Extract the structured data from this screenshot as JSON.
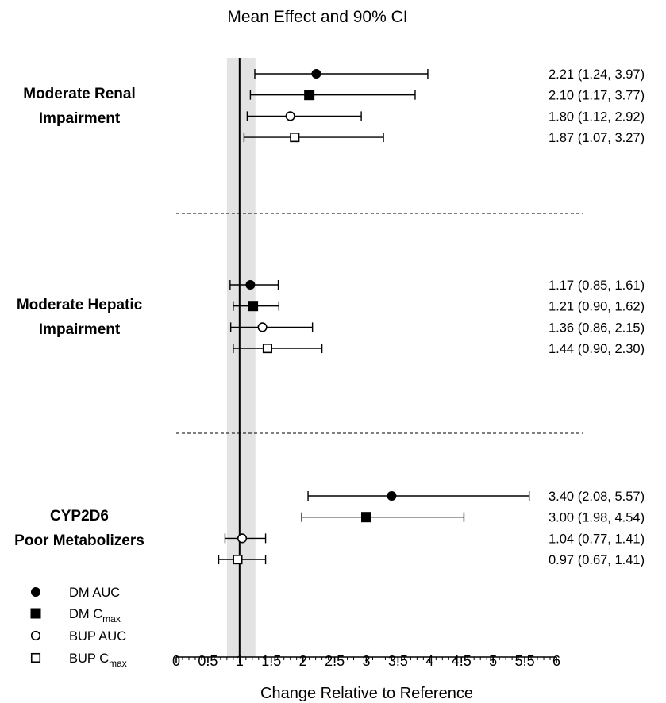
{
  "chart_data": {
    "type": "forest",
    "title": "Mean Effect and 90% CI",
    "xlabel": "Change Relative to Reference",
    "xlim": [
      0,
      6
    ],
    "xticks": [
      "0",
      "0.5",
      "1",
      "1.5",
      "2",
      "2.5",
      "3",
      "3.5",
      "4",
      "4.5",
      "5",
      "5.5",
      "6"
    ],
    "reference_line": 1,
    "reference_band": [
      0.8,
      1.25
    ],
    "legend": [
      {
        "marker": "filled-circle",
        "label": "DM AUC",
        "sub": ""
      },
      {
        "marker": "filled-square",
        "label": "DM C",
        "sub": "max"
      },
      {
        "marker": "open-circle",
        "label": "BUP AUC",
        "sub": ""
      },
      {
        "marker": "open-square",
        "label": "BUP C",
        "sub": "max"
      }
    ],
    "groups": [
      {
        "label_lines": [
          "Moderate Renal",
          "Impairment"
        ],
        "rows": [
          {
            "marker": "filled-circle",
            "mean": 2.21,
            "lo": 1.24,
            "hi": 3.97,
            "text": "2.21 (1.24, 3.97)"
          },
          {
            "marker": "filled-square",
            "mean": 2.1,
            "lo": 1.17,
            "hi": 3.77,
            "text": "2.10 (1.17, 3.77)"
          },
          {
            "marker": "open-circle",
            "mean": 1.8,
            "lo": 1.12,
            "hi": 2.92,
            "text": "1.80 (1.12, 2.92)"
          },
          {
            "marker": "open-square",
            "mean": 1.87,
            "lo": 1.07,
            "hi": 3.27,
            "text": "1.87 (1.07, 3.27)"
          }
        ]
      },
      {
        "label_lines": [
          "Moderate Hepatic",
          "Impairment"
        ],
        "rows": [
          {
            "marker": "filled-circle",
            "mean": 1.17,
            "lo": 0.85,
            "hi": 1.61,
            "text": "1.17 (0.85, 1.61)"
          },
          {
            "marker": "filled-square",
            "mean": 1.21,
            "lo": 0.9,
            "hi": 1.62,
            "text": "1.21 (0.90, 1.62)"
          },
          {
            "marker": "open-circle",
            "mean": 1.36,
            "lo": 0.86,
            "hi": 2.15,
            "text": "1.36 (0.86, 2.15)"
          },
          {
            "marker": "open-square",
            "mean": 1.44,
            "lo": 0.9,
            "hi": 2.3,
            "text": "1.44 (0.90, 2.30)"
          }
        ]
      },
      {
        "label_lines": [
          "CYP2D6",
          "Poor Metabolizers"
        ],
        "rows": [
          {
            "marker": "filled-circle",
            "mean": 3.4,
            "lo": 2.08,
            "hi": 5.57,
            "text": "3.40 (2.08, 5.57)"
          },
          {
            "marker": "filled-square",
            "mean": 3.0,
            "lo": 1.98,
            "hi": 4.54,
            "text": "3.00 (1.98, 4.54)"
          },
          {
            "marker": "open-circle",
            "mean": 1.04,
            "lo": 0.77,
            "hi": 1.41,
            "text": "1.04 (0.77, 1.41)"
          },
          {
            "marker": "open-square",
            "mean": 0.97,
            "lo": 0.67,
            "hi": 1.41,
            "text": "0.97 (0.67, 1.41)"
          }
        ]
      }
    ]
  }
}
